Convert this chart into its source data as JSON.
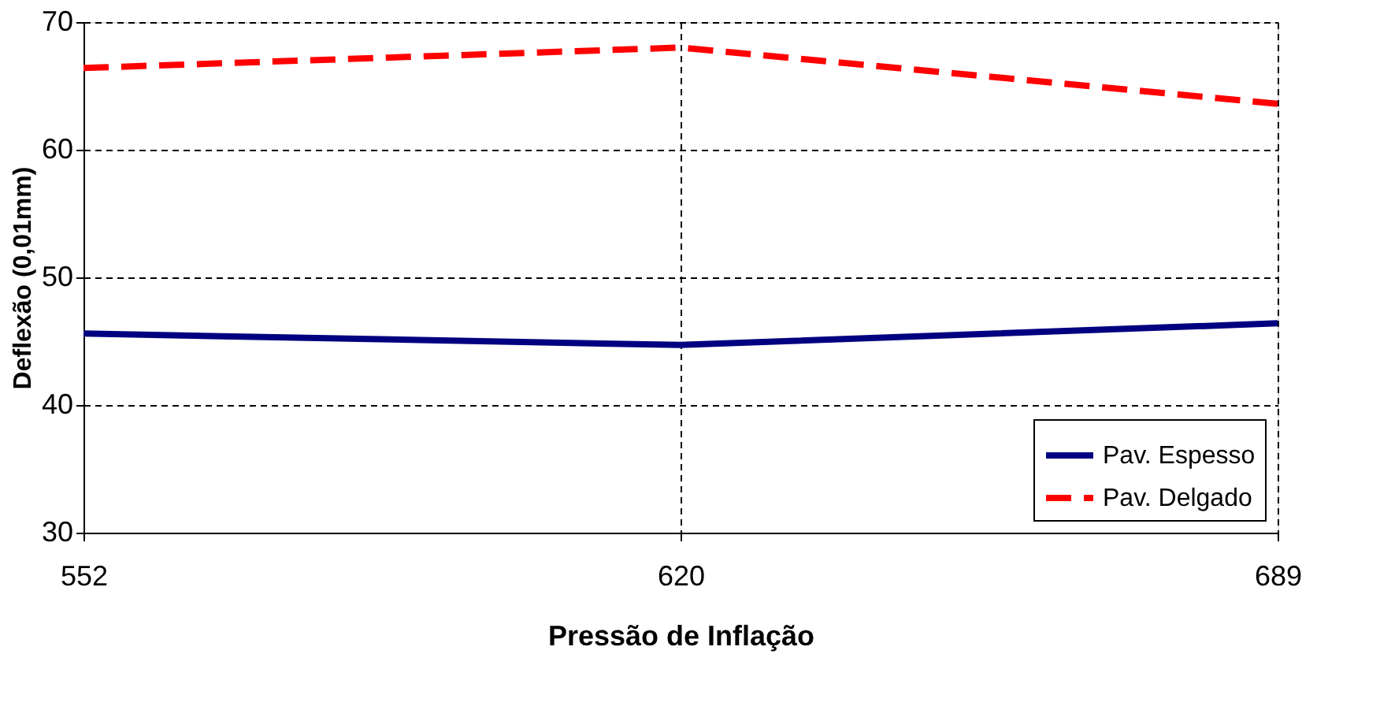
{
  "chart_data": {
    "type": "line",
    "xlabel": "Pressão de Inflação",
    "ylabel": "Deflexão (0,01mm)",
    "categories": [
      "552",
      "620",
      "689"
    ],
    "series": [
      {
        "name": "Pav. Espesso",
        "color": "#000080",
        "line_style": "solid",
        "values": [
          45.6,
          44.7,
          46.4
        ]
      },
      {
        "name": "Pav. Delgado",
        "color": "#ff0000",
        "line_style": "dashed",
        "values": [
          66.4,
          68.0,
          63.6
        ]
      }
    ],
    "ylim": [
      30,
      70
    ],
    "yticks": [
      30,
      40,
      50,
      60,
      70
    ],
    "grid": true,
    "legend": "bottom right",
    "marker": "none"
  }
}
